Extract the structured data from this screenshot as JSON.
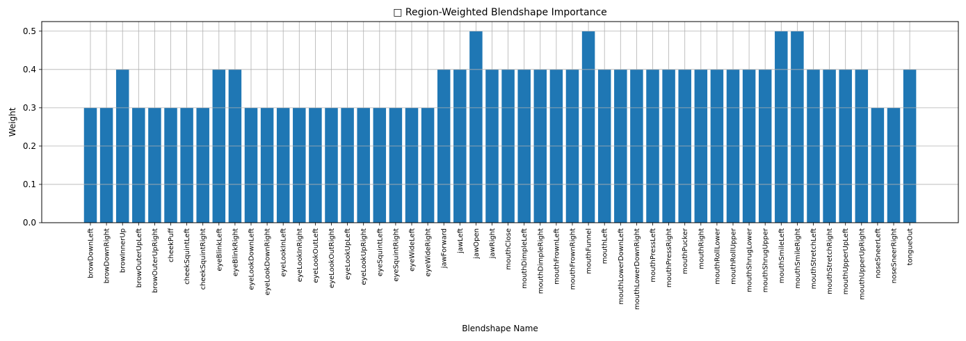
{
  "chart_data": {
    "type": "bar",
    "title": "□ Region-Weighted Blendshape Importance",
    "xlabel": "Blendshape Name",
    "ylabel": "Weight",
    "ylim": [
      0,
      0.525
    ],
    "yticks": [
      "0.0",
      "0.1",
      "0.2",
      "0.3",
      "0.4",
      "0.5"
    ],
    "grid": true,
    "bar_color": "#1f77b4",
    "categories": [
      "browDownLeft",
      "browDownRight",
      "browInnerUp",
      "browOuterUpLeft",
      "browOuterUpRight",
      "cheekPuff",
      "cheekSquintLeft",
      "cheekSquintRight",
      "eyeBlinkLeft",
      "eyeBlinkRight",
      "eyeLookDownLeft",
      "eyeLookDownRight",
      "eyeLookInLeft",
      "eyeLookInRight",
      "eyeLookOutLeft",
      "eyeLookOutRight",
      "eyeLookUpLeft",
      "eyeLookUpRight",
      "eyeSquintLeft",
      "eyeSquintRight",
      "eyeWideLeft",
      "eyeWideRight",
      "jawForward",
      "jawLeft",
      "jawOpen",
      "jawRight",
      "mouthClose",
      "mouthDimpleLeft",
      "mouthDimpleRight",
      "mouthFrownLeft",
      "mouthFrownRight",
      "mouthFunnel",
      "mouthLeft",
      "mouthLowerDownLeft",
      "mouthLowerDownRight",
      "mouthPressLeft",
      "mouthPressRight",
      "mouthPucker",
      "mouthRight",
      "mouthRollLower",
      "mouthRollUpper",
      "mouthShrugLower",
      "mouthShrugUpper",
      "mouthSmileLeft",
      "mouthSmileRight",
      "mouthStretchLeft",
      "mouthStretchRight",
      "mouthUpperUpLeft",
      "mouthUpperUpRight",
      "noseSneerLeft",
      "noseSneerRight",
      "tongueOut"
    ],
    "values": [
      0.3,
      0.3,
      0.4,
      0.3,
      0.3,
      0.3,
      0.3,
      0.3,
      0.4,
      0.4,
      0.3,
      0.3,
      0.3,
      0.3,
      0.3,
      0.3,
      0.3,
      0.3,
      0.3,
      0.3,
      0.3,
      0.3,
      0.4,
      0.4,
      0.5,
      0.4,
      0.4,
      0.4,
      0.4,
      0.4,
      0.4,
      0.5,
      0.4,
      0.4,
      0.4,
      0.4,
      0.4,
      0.4,
      0.4,
      0.4,
      0.4,
      0.4,
      0.4,
      0.5,
      0.5,
      0.4,
      0.4,
      0.4,
      0.4,
      0.3,
      0.3,
      0.4
    ]
  }
}
